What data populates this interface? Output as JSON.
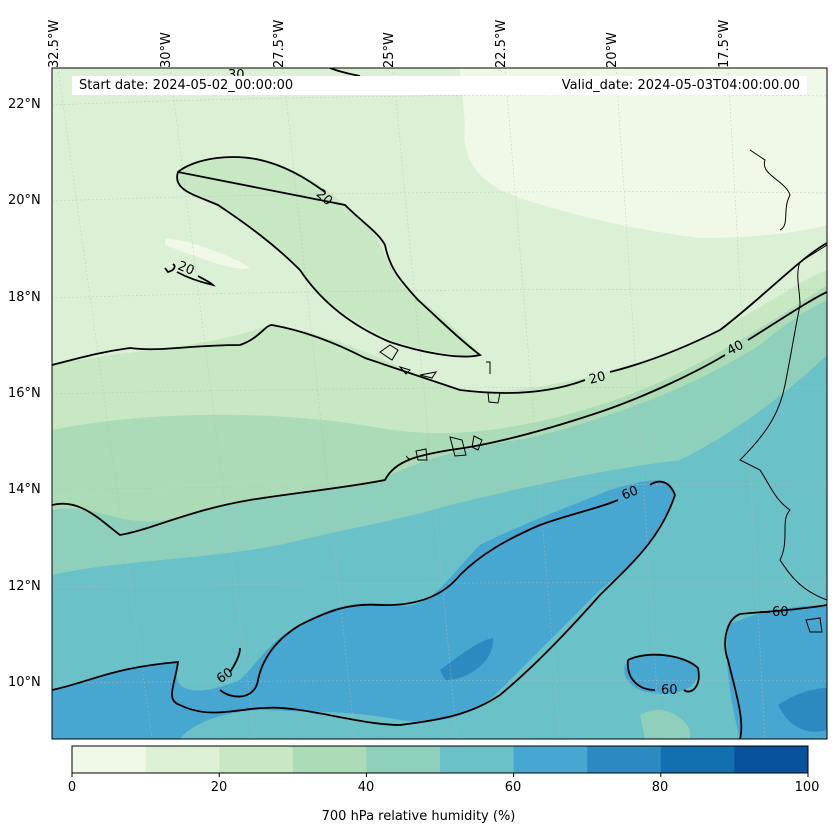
{
  "header": {
    "start_date": "Start date: 2024-05-02_00:00:00",
    "valid_date": "Valid_date: 2024-05-03T04:00:00.00"
  },
  "axes": {
    "lon_labels": [
      "32.5°W",
      "30°W",
      "27.5°W",
      "25°W",
      "22.5°W",
      "20°W",
      "17.5°W"
    ],
    "lat_labels": [
      "22°N",
      "20°N",
      "18°N",
      "16°N",
      "14°N",
      "12°N",
      "10°N"
    ]
  },
  "contour_labels": {
    "c20_a": "20",
    "c20_b": "20",
    "c20_c": "20",
    "c40": "40",
    "c60_a": "60",
    "c60_b": "60",
    "c60_c": "60",
    "c60_d": "60",
    "c30": "30"
  },
  "colorbar": {
    "title": "700 hPa relative humidity (%)",
    "ticks": [
      "0",
      "20",
      "40",
      "60",
      "80",
      "100"
    ],
    "levels": [
      0,
      10,
      20,
      30,
      40,
      50,
      60,
      70,
      80,
      90,
      100
    ],
    "colors": [
      "#f0f9e8",
      "#dcf0d6",
      "#c7e8c3",
      "#abdbb7",
      "#8ed0bc",
      "#6ac1c8",
      "#48a7d0",
      "#2d8ac1",
      "#1370b0",
      "#08519c"
    ]
  }
}
